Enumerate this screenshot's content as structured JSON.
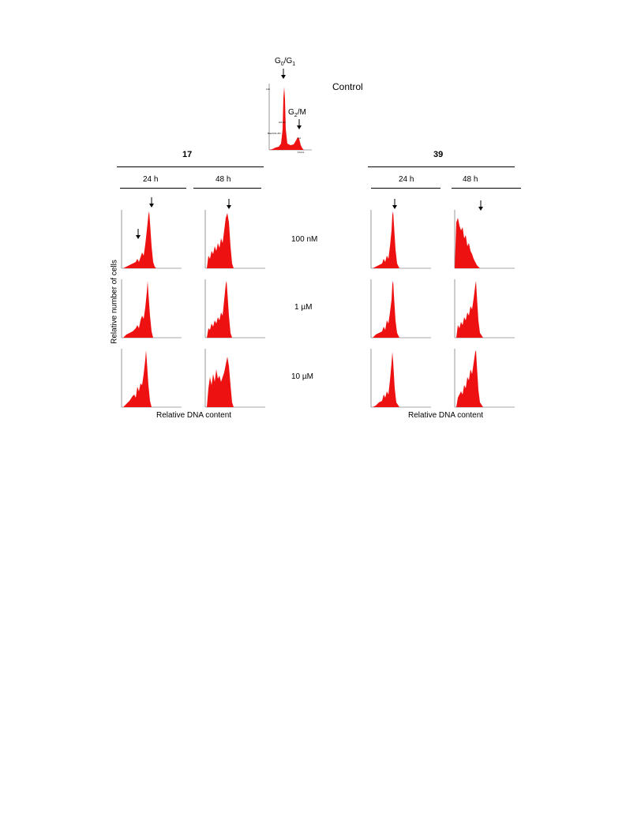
{
  "control": {
    "title": "Control",
    "g0g1_label_main": "G",
    "g0g1_sub1": "0",
    "g0g1_mid": "/G",
    "g0g1_sub2": "1",
    "g2m_label_main": "G",
    "g2m_sub": "2",
    "g2m_rest": "/M"
  },
  "compounds": [
    {
      "name": "17",
      "times": [
        "24 h",
        "48 h"
      ]
    },
    {
      "name": "39",
      "times": [
        "24 h",
        "48 h"
      ]
    }
  ],
  "concentrations": [
    "100 nM",
    "1 µM",
    "10 µM"
  ],
  "axis": {
    "y_label": "Relative number of cells",
    "x_label_left": "Relative  DNA content",
    "x_label_right": "Relative  DNA content"
  },
  "colors": {
    "histogram_fill": "#ee1111",
    "axis": "#555555"
  }
}
